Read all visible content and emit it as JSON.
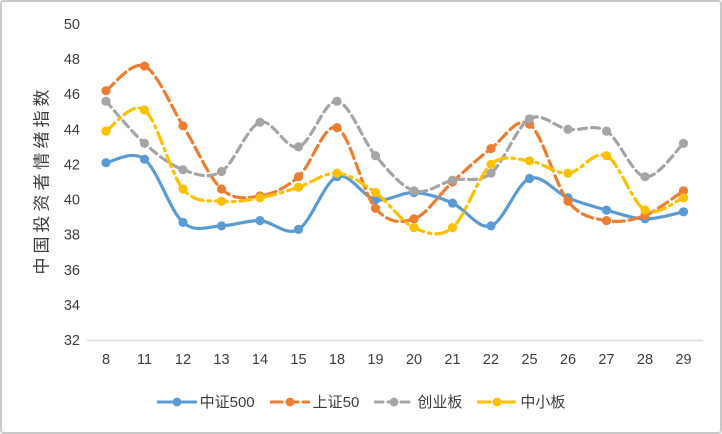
{
  "window": {
    "background": "#ffffff",
    "border_color": "#c9c9c9"
  },
  "chart_data": {
    "type": "line",
    "title": "",
    "xlabel": "",
    "ylabel": "中国投资者情绪指数",
    "x_tick_labels": [
      "8",
      "11",
      "12",
      "13",
      "14",
      "15",
      "18",
      "19",
      "20",
      "21",
      "22",
      "25",
      "26",
      "27",
      "28",
      "29"
    ],
    "yticks": [
      50,
      48,
      46,
      44,
      42,
      40,
      38,
      36,
      34,
      32
    ],
    "ylim": [
      32,
      50
    ],
    "grid": false,
    "smoothed_lines": true,
    "legend_position": "bottom",
    "axis_line_color": "#d9d9d9",
    "tick_label_color": "#3d3d3d",
    "series": [
      {
        "name": "中证500",
        "color": "#5B9BD5",
        "line_style": "solid",
        "marker": "circle",
        "values": [
          42.1,
          42.3,
          38.7,
          38.5,
          38.8,
          38.3,
          41.3,
          40.0,
          40.4,
          39.8,
          38.5,
          41.2,
          40.1,
          39.4,
          38.9,
          39.3
        ]
      },
      {
        "name": "上证50",
        "color": "#ED7D31",
        "line_style": "long-dash",
        "marker": "circle",
        "values": [
          46.2,
          47.6,
          44.2,
          40.6,
          40.2,
          41.3,
          44.1,
          39.5,
          38.9,
          41.0,
          42.9,
          44.3,
          39.9,
          38.8,
          39.1,
          40.5
        ]
      },
      {
        "name": "创业板",
        "color": "#A5A5A5",
        "line_style": "dash",
        "marker": "circle",
        "values": [
          45.6,
          43.2,
          41.7,
          41.6,
          44.4,
          43.0,
          45.6,
          42.5,
          40.5,
          41.1,
          41.5,
          44.6,
          44.0,
          43.9,
          41.3,
          43.2
        ]
      },
      {
        "name": "中小板",
        "color": "#FFC000",
        "line_style": "dash-dot",
        "marker": "circle",
        "values": [
          43.9,
          45.1,
          40.6,
          39.9,
          40.1,
          40.7,
          41.5,
          40.4,
          38.4,
          38.4,
          42.0,
          42.2,
          41.5,
          42.5,
          39.4,
          40.1
        ]
      }
    ]
  }
}
